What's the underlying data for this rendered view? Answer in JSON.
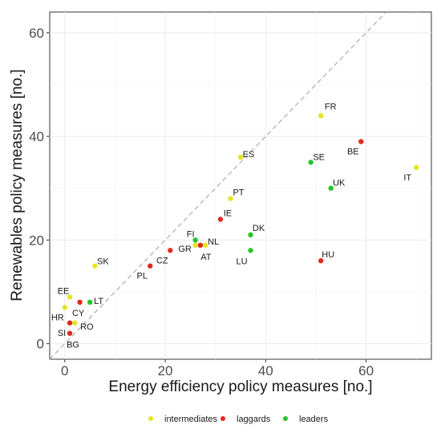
{
  "chart_data": {
    "type": "scatter",
    "title": "",
    "xlabel": "Energy efficiency policy measures [no.]",
    "ylabel": "Renewables policy measures [no.]",
    "xlim": [
      -3,
      73
    ],
    "ylim": [
      -3,
      64
    ],
    "xticks": [
      0,
      20,
      40,
      60
    ],
    "yticks": [
      0,
      20,
      40,
      60
    ],
    "grid": true,
    "reference_line": "y = x (dashed)",
    "legend_position": "bottom",
    "groups": [
      {
        "name": "intermediates",
        "color": "#e5e522"
      },
      {
        "name": "laggards",
        "color": "#e3281c"
      },
      {
        "name": "leaders",
        "color": "#27c427"
      }
    ],
    "points": [
      {
        "label": "FR",
        "x": 51,
        "y": 44,
        "group": "intermediates"
      },
      {
        "label": "BE",
        "x": 59,
        "y": 39,
        "group": "laggards"
      },
      {
        "label": "ES",
        "x": 35,
        "y": 36,
        "group": "intermediates"
      },
      {
        "label": "SE",
        "x": 49,
        "y": 35,
        "group": "leaders"
      },
      {
        "label": "IT",
        "x": 70,
        "y": 34,
        "group": "intermediates"
      },
      {
        "label": "UK",
        "x": 53,
        "y": 30,
        "group": "leaders"
      },
      {
        "label": "PT",
        "x": 33,
        "y": 28,
        "group": "intermediates"
      },
      {
        "label": "IE",
        "x": 31,
        "y": 24,
        "group": "laggards"
      },
      {
        "label": "DK",
        "x": 37,
        "y": 21,
        "group": "leaders"
      },
      {
        "label": "FI",
        "x": 26,
        "y": 20,
        "group": "leaders"
      },
      {
        "label": "NL",
        "x": 28,
        "y": 19,
        "group": "intermediates"
      },
      {
        "label": "GR",
        "x": 26,
        "y": 19,
        "group": "intermediates"
      },
      {
        "label": "AT",
        "x": 27,
        "y": 19,
        "group": "laggards"
      },
      {
        "label": "CZ",
        "x": 21,
        "y": 18,
        "group": "laggards"
      },
      {
        "label": "LU",
        "x": 37,
        "y": 18,
        "group": "leaders"
      },
      {
        "label": "HU",
        "x": 51,
        "y": 16,
        "group": "laggards"
      },
      {
        "label": "SK",
        "x": 6,
        "y": 15,
        "group": "intermediates"
      },
      {
        "label": "PL",
        "x": 17,
        "y": 15,
        "group": "laggards"
      },
      {
        "label": "EE",
        "x": 1,
        "y": 9,
        "group": "intermediates"
      },
      {
        "label": "LT",
        "x": 5,
        "y": 8,
        "group": "leaders"
      },
      {
        "label": "CY",
        "x": 3,
        "y": 8,
        "group": "laggards"
      },
      {
        "label": "HR",
        "x": 0,
        "y": 7,
        "group": "intermediates"
      },
      {
        "label": "RO",
        "x": 2,
        "y": 4,
        "group": "intermediates"
      },
      {
        "label": "SI",
        "x": 1,
        "y": 4,
        "group": "laggards"
      },
      {
        "label": "BG",
        "x": 1,
        "y": 2,
        "group": "laggards"
      }
    ]
  }
}
